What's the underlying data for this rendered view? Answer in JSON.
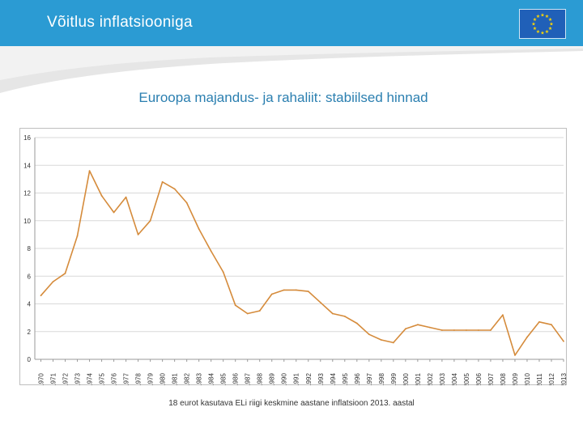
{
  "header": {
    "title": "Võitlus inflatsiooniga"
  },
  "subtitle": "Euroopa majandus- ja rahaliit: stabiilsed hinnad",
  "footnote": "18 eurot kasutava ELi riigi keskmine aastane inflatsioon 2013. aastal",
  "colors": {
    "header": "#2b9bd3",
    "line": "#d58b3b",
    "grid": "#d9d9d9",
    "flag": "#2060b8",
    "stars": "#ffd700"
  },
  "icons": {
    "flag": "eu-flag-icon"
  },
  "chart_data": {
    "type": "line",
    "title": "",
    "xlabel": "",
    "ylabel": "",
    "ylim": [
      0,
      16
    ],
    "yticks": [
      0,
      2,
      4,
      6,
      8,
      10,
      12,
      14,
      16
    ],
    "grid": true,
    "legend": "none",
    "categories": [
      "1970",
      "1971",
      "1972",
      "1973",
      "1974",
      "1975",
      "1976",
      "1977",
      "1978",
      "1979",
      "1980",
      "1981",
      "1982",
      "1983",
      "1984",
      "1985",
      "1986",
      "1987",
      "1988",
      "1989",
      "1990",
      "1991",
      "1992",
      "1993",
      "1994",
      "1995",
      "1996",
      "1997",
      "1998",
      "1999",
      "2000",
      "2001",
      "2002",
      "2003",
      "2004",
      "2005",
      "2006",
      "2007",
      "2008",
      "2009",
      "2010",
      "2011",
      "2012",
      "2013"
    ],
    "series": [
      {
        "values": [
          4.6,
          5.6,
          6.2,
          8.9,
          13.6,
          11.8,
          10.6,
          11.7,
          9.0,
          10.0,
          12.8,
          12.3,
          11.3,
          9.4,
          7.8,
          6.3,
          3.9,
          3.3,
          3.5,
          4.7,
          5.0,
          5.0,
          4.9,
          4.1,
          3.3,
          3.1,
          2.6,
          1.8,
          1.4,
          1.2,
          2.2,
          2.5,
          2.3,
          2.1,
          2.1,
          2.1,
          2.1,
          2.1,
          3.2,
          0.3,
          1.6,
          2.7,
          2.5,
          1.3
        ]
      }
    ]
  }
}
